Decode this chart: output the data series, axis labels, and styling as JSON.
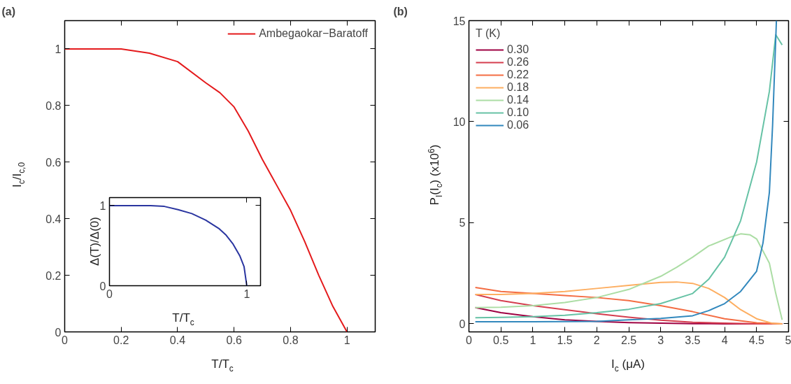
{
  "chart_data": [
    {
      "type": "line",
      "title": "(a)",
      "xlabel": "T/T$_{c}$",
      "ylabel": "I$_{c}$/I$_{c,0}$",
      "x": [
        0,
        0.1,
        0.2,
        0.3,
        0.4,
        0.5,
        0.55,
        0.6,
        0.65,
        0.7,
        0.75,
        0.8,
        0.85,
        0.9,
        0.95,
        1.0
      ],
      "series": [
        {
          "name": "Ambegaokar−Baratoff",
          "color": "#e41a1c",
          "values": [
            1,
            1,
            1,
            0.985,
            0.955,
            0.88,
            0.845,
            0.795,
            0.71,
            0.61,
            0.52,
            0.43,
            0.32,
            0.2,
            0.09,
            0
          ]
        }
      ],
      "xlim": [
        0,
        1.1
      ],
      "ylim": [
        0,
        1.1
      ],
      "xticks": [
        0,
        0.2,
        0.4,
        0.6,
        0.8,
        1
      ],
      "yticks": [
        0,
        0.2,
        0.4,
        0.6,
        0.8,
        1
      ],
      "legend": "top right"
    },
    {
      "type": "line",
      "xlabel": "T/T$_{c}$",
      "ylabel": "Δ(T)/Δ(0)",
      "x": [
        0,
        0.1,
        0.2,
        0.3,
        0.4,
        0.5,
        0.6,
        0.7,
        0.8,
        0.85,
        0.9,
        0.95,
        0.98,
        1.0
      ],
      "series": [
        {
          "color": "#2a35a0",
          "values": [
            1,
            1,
            1,
            1,
            0.99,
            0.95,
            0.9,
            0.82,
            0.71,
            0.63,
            0.52,
            0.37,
            0.24,
            0
          ]
        }
      ],
      "xlim": [
        0,
        1.1
      ],
      "ylim": [
        0,
        1.1
      ],
      "xticks": [
        0,
        1
      ],
      "yticks": [
        0,
        1
      ]
    },
    {
      "type": "line",
      "title": "(b)",
      "xlabel": "I$_{c}$ (μA)",
      "ylabel": "P$_{I}$(I$_{c}$) (x10$^{6}$)",
      "legend_title": "T (K)",
      "series": [
        {
          "name": "0.30",
          "color": "#9e0142",
          "x": [
            0.1,
            0.5,
            1,
            1.5,
            2,
            2.5,
            3,
            3.5,
            4,
            4.5,
            4.9
          ],
          "values": [
            0.8,
            0.55,
            0.35,
            0.2,
            0.12,
            0.06,
            0.03,
            0.01,
            0,
            0,
            0
          ]
        },
        {
          "name": "0.26",
          "color": "#d53e4f",
          "x": [
            0.1,
            0.5,
            1,
            1.5,
            2,
            2.5,
            3,
            3.5,
            4,
            4.5,
            4.9
          ],
          "values": [
            1.45,
            1.15,
            0.9,
            0.7,
            0.5,
            0.33,
            0.18,
            0.08,
            0.03,
            0,
            0
          ]
        },
        {
          "name": "0.22",
          "color": "#f46d43",
          "x": [
            0.1,
            0.5,
            1,
            1.5,
            2,
            2.5,
            3,
            3.5,
            4,
            4.5,
            4.9
          ],
          "values": [
            1.8,
            1.6,
            1.5,
            1.4,
            1.3,
            1.15,
            0.9,
            0.6,
            0.25,
            0.05,
            0
          ]
        },
        {
          "name": "0.18",
          "color": "#fdae61",
          "x": [
            0.1,
            0.5,
            1,
            1.5,
            2,
            2.5,
            3,
            3.25,
            3.5,
            3.75,
            4,
            4.25,
            4.5,
            4.75,
            4.9
          ],
          "values": [
            1.45,
            1.45,
            1.5,
            1.6,
            1.75,
            1.9,
            2.05,
            2.07,
            2.0,
            1.75,
            1.3,
            0.7,
            0.25,
            0.02,
            0
          ]
        },
        {
          "name": "0.14",
          "color": "#abdda4",
          "x": [
            0.1,
            0.5,
            1,
            1.5,
            2,
            2.5,
            3,
            3.25,
            3.5,
            3.75,
            4.1,
            4.25,
            4.4,
            4.5,
            4.7,
            4.8,
            4.9
          ],
          "values": [
            0.8,
            0.82,
            0.9,
            1.05,
            1.3,
            1.7,
            2.35,
            2.8,
            3.3,
            3.85,
            4.3,
            4.45,
            4.4,
            4.2,
            3.0,
            1.5,
            0.2
          ]
        },
        {
          "name": "0.10",
          "color": "#66c2a5",
          "x": [
            0.1,
            0.5,
            1,
            1.5,
            2,
            2.5,
            3,
            3.5,
            3.75,
            4,
            4.25,
            4.5,
            4.7,
            4.8,
            4.9
          ],
          "values": [
            0.3,
            0.32,
            0.35,
            0.42,
            0.55,
            0.72,
            1.0,
            1.5,
            2.2,
            3.3,
            5.1,
            8.0,
            11.5,
            14.3,
            13.8
          ]
        },
        {
          "name": "0.06",
          "color": "#3288bd",
          "x": [
            0.1,
            1,
            2,
            2.5,
            3,
            3.5,
            3.75,
            4,
            4.25,
            4.5,
            4.6,
            4.7,
            4.75,
            4.81
          ],
          "values": [
            0.1,
            0.1,
            0.12,
            0.2,
            0.27,
            0.4,
            0.65,
            1.0,
            1.6,
            2.6,
            4.0,
            6.5,
            9.8,
            15
          ]
        }
      ],
      "xlim": [
        0,
        5
      ],
      "ylim": [
        -0.4,
        15
      ],
      "xticks": [
        0,
        0.5,
        1,
        1.5,
        2,
        2.5,
        3,
        3.5,
        4,
        4.5,
        5
      ],
      "yticks": [
        0,
        5,
        10,
        15
      ],
      "legend": "top left"
    }
  ]
}
